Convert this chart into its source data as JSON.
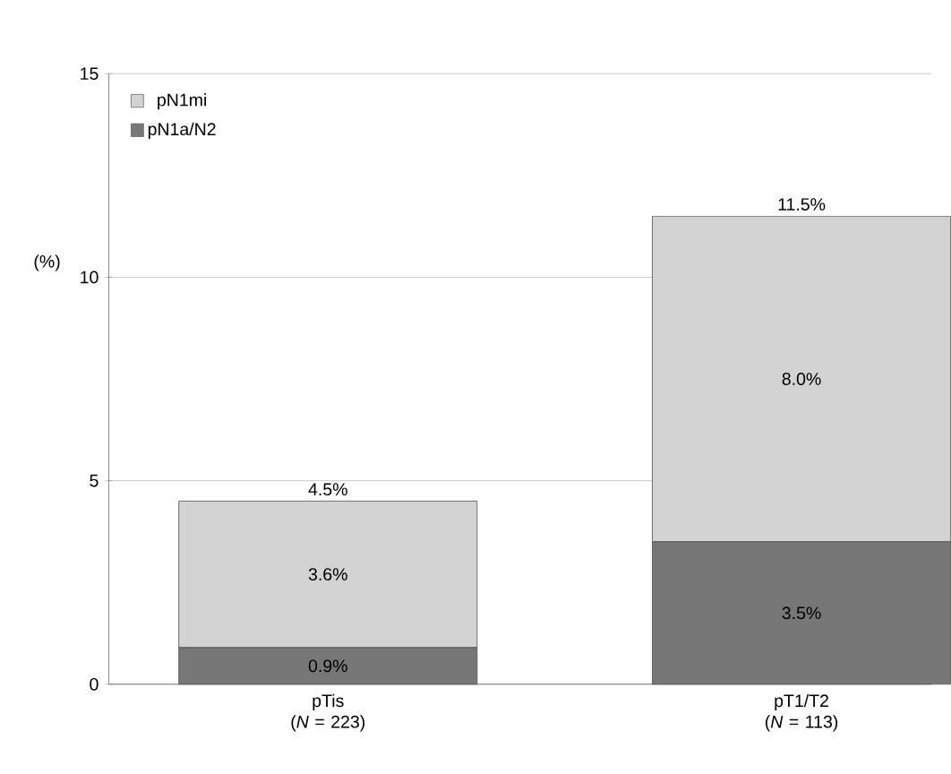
{
  "chart_data": {
    "type": "bar",
    "stacked": true,
    "ylabel": "(%)",
    "categories": [
      "pTis\n(*N* = 223)",
      "pT1/T2\n(*N* = 113)"
    ],
    "series": [
      {
        "name": "pN1a/N2",
        "color": "#777777",
        "values": [
          0.9,
          3.5
        ],
        "value_labels": [
          "0.9%",
          "3.5%"
        ]
      },
      {
        "name": "pN1mi",
        "color": "#d3d3d3",
        "values": [
          3.6,
          8.0
        ],
        "value_labels": [
          "3.6%",
          "8.0%"
        ]
      }
    ],
    "totals": [
      "4.5%",
      "11.5%"
    ],
    "ylim": [
      0,
      15
    ],
    "yticks": [
      0,
      5,
      10,
      15
    ],
    "grid": "y",
    "legend": "top left"
  }
}
